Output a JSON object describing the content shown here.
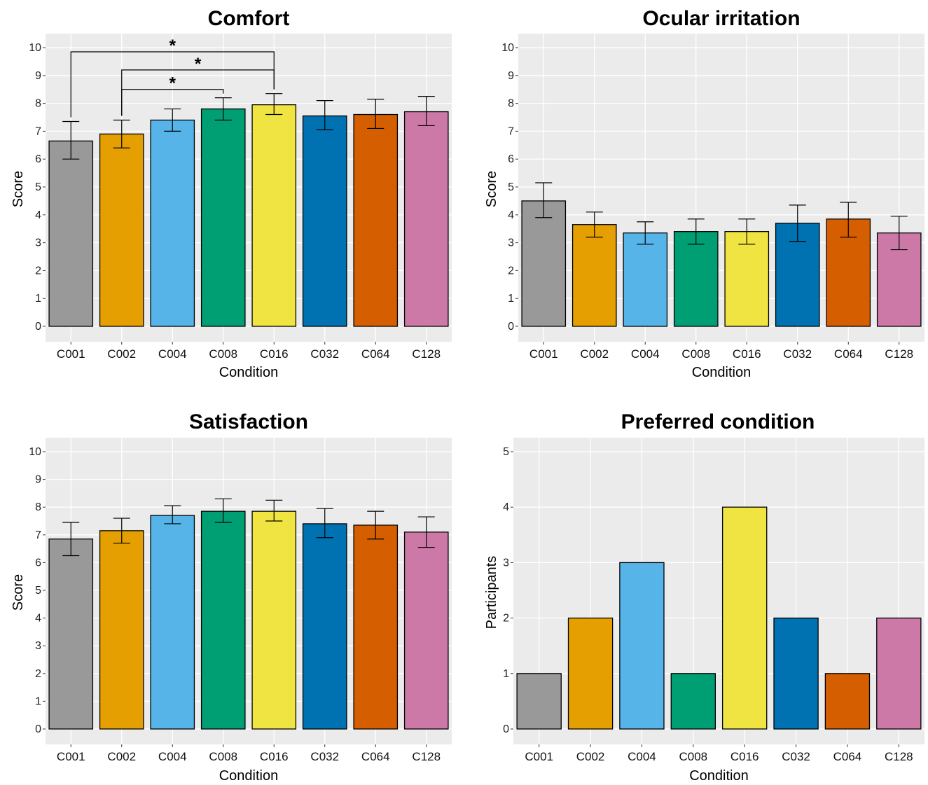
{
  "colors": {
    "panel_bg": "#ebebeb",
    "grid": "#ffffff",
    "bar_stroke": "#000000",
    "condition_colors": [
      "#999999",
      "#e69f00",
      "#56b4e9",
      "#009e73",
      "#f0e442",
      "#0072b2",
      "#d55e00",
      "#cc79a7"
    ]
  },
  "chart_data": [
    {
      "type": "bar",
      "title": "Comfort",
      "xlabel": "Condition",
      "ylabel": "Score",
      "categories": [
        "C001",
        "C002",
        "C004",
        "C008",
        "C016",
        "C032",
        "C064",
        "C128"
      ],
      "values": [
        6.65,
        6.9,
        7.4,
        7.8,
        7.95,
        7.55,
        7.6,
        7.7
      ],
      "error_low": [
        6.0,
        6.4,
        7.0,
        7.4,
        7.6,
        7.05,
        7.1,
        7.2
      ],
      "error_high": [
        7.35,
        7.4,
        7.8,
        8.2,
        8.35,
        8.1,
        8.15,
        8.25
      ],
      "ylim": [
        0,
        10
      ],
      "yticks": [
        0,
        1,
        2,
        3,
        4,
        5,
        6,
        7,
        8,
        9,
        10
      ],
      "grid": true,
      "significance": [
        {
          "from": "C002",
          "to": "C008",
          "label": "*",
          "y": 8.5
        },
        {
          "from": "C002",
          "to": "C016",
          "label": "*",
          "y": 9.2
        },
        {
          "from": "C001",
          "to": "C016",
          "label": "*",
          "y": 9.85
        }
      ]
    },
    {
      "type": "bar",
      "title": "Ocular irritation",
      "xlabel": "Condition",
      "ylabel": "Score",
      "categories": [
        "C001",
        "C002",
        "C004",
        "C008",
        "C016",
        "C032",
        "C064",
        "C128"
      ],
      "values": [
        4.5,
        3.65,
        3.35,
        3.4,
        3.4,
        3.7,
        3.85,
        3.35
      ],
      "error_low": [
        3.9,
        3.2,
        2.95,
        2.95,
        2.95,
        3.05,
        3.2,
        2.75
      ],
      "error_high": [
        5.15,
        4.1,
        3.75,
        3.85,
        3.85,
        4.35,
        4.45,
        3.95
      ],
      "ylim": [
        0,
        10
      ],
      "yticks": [
        0,
        1,
        2,
        3,
        4,
        5,
        6,
        7,
        8,
        9,
        10
      ],
      "grid": true
    },
    {
      "type": "bar",
      "title": "Satisfaction",
      "xlabel": "Condition",
      "ylabel": "Score",
      "categories": [
        "C001",
        "C002",
        "C004",
        "C008",
        "C016",
        "C032",
        "C064",
        "C128"
      ],
      "values": [
        6.85,
        7.15,
        7.7,
        7.85,
        7.85,
        7.4,
        7.35,
        7.1
      ],
      "error_low": [
        6.25,
        6.7,
        7.4,
        7.45,
        7.5,
        6.9,
        6.85,
        6.55
      ],
      "error_high": [
        7.45,
        7.6,
        8.05,
        8.3,
        8.25,
        7.95,
        7.85,
        7.65
      ],
      "ylim": [
        0,
        10
      ],
      "yticks": [
        0,
        1,
        2,
        3,
        4,
        5,
        6,
        7,
        8,
        9,
        10
      ],
      "grid": true
    },
    {
      "type": "bar",
      "title": "Preferred condition",
      "xlabel": "Condition",
      "ylabel": "Participants",
      "categories": [
        "C001",
        "C002",
        "C004",
        "C008",
        "C016",
        "C032",
        "C064",
        "C128"
      ],
      "values": [
        1,
        2,
        3,
        1,
        4,
        2,
        1,
        2
      ],
      "ylim": [
        0,
        5
      ],
      "yticks": [
        0,
        1,
        2,
        3,
        4,
        5
      ],
      "grid": true
    }
  ]
}
